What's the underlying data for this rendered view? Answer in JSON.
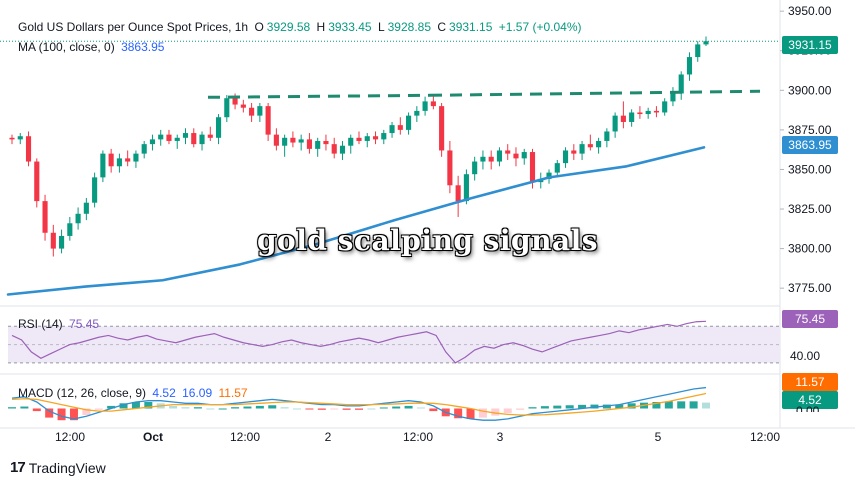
{
  "header": {
    "symbol_title": "Gold US Dollars per Ounce Spot Prices, 1h",
    "open_label": "O",
    "open_value": "3929.58",
    "high_label": "H",
    "high_value": "3933.45",
    "low_label": "L",
    "low_value": "3928.85",
    "close_label": "C",
    "close_value": "3931.15",
    "change": "+1.57 (+0.04%)",
    "ma_label": "MA (100, close, 0)",
    "ma_value": "3863.95"
  },
  "rsi_header": {
    "label": "RSI (14)",
    "value": "75.45"
  },
  "macd_header": {
    "label": "MACD (12, 26, close, 9)",
    "v1": "4.52",
    "v2": "16.09",
    "v3": "11.57"
  },
  "price_badges": {
    "last": "3931.15",
    "ma": "3863.95",
    "rsi": "75.45",
    "macd_signal": "11.57",
    "macd_line": "4.52"
  },
  "rsi_axis_label": "40.00",
  "macd_axis_partial": "0.00",
  "brand": "TradingView",
  "watermark": "gold scalping signals",
  "colors": {
    "up": "#089981",
    "down": "#f23645",
    "ma": "#2f8fd0",
    "rsi": "#9c61b8",
    "rsi_band": "#efe9f7",
    "macd": "#2f8fd0",
    "signal": "#f5a623",
    "resistance": "#1f8a70",
    "badge_price": "#089981",
    "badge_ma": "#2f8fd0",
    "badge_rsi": "#9c61b8",
    "badge_signal": "#ff6d00",
    "badge_macd": "#089981"
  },
  "chart_data": [
    {
      "type": "candlestick",
      "title": "Gold US Dollars per Ounce Spot Prices, 1h",
      "y_ticks": [
        3775,
        3800,
        3825,
        3850,
        3875,
        3900,
        3925,
        3950
      ],
      "ylim": [
        3765,
        3952
      ],
      "x_ticks": [
        "12:00",
        "Oct",
        "12:00",
        "2",
        "12:00",
        "3",
        "5",
        "12:00"
      ],
      "candles_ohlc": [
        [
          3870,
          3872,
          3866,
          3869
        ],
        [
          3869,
          3873,
          3866,
          3871
        ],
        [
          3871,
          3874,
          3852,
          3855
        ],
        [
          3855,
          3857,
          3826,
          3830
        ],
        [
          3830,
          3834,
          3805,
          3810
        ],
        [
          3810,
          3815,
          3795,
          3800
        ],
        [
          3800,
          3812,
          3797,
          3808
        ],
        [
          3808,
          3820,
          3805,
          3816
        ],
        [
          3816,
          3826,
          3812,
          3822
        ],
        [
          3822,
          3832,
          3818,
          3829
        ],
        [
          3829,
          3848,
          3826,
          3845
        ],
        [
          3845,
          3862,
          3842,
          3860
        ],
        [
          3860,
          3863,
          3848,
          3852
        ],
        [
          3852,
          3860,
          3848,
          3857
        ],
        [
          3857,
          3862,
          3852,
          3855
        ],
        [
          3855,
          3862,
          3851,
          3860
        ],
        [
          3860,
          3868,
          3857,
          3866
        ],
        [
          3866,
          3872,
          3862,
          3869
        ],
        [
          3869,
          3875,
          3865,
          3872
        ],
        [
          3872,
          3875,
          3866,
          3868
        ],
        [
          3868,
          3872,
          3863,
          3870
        ],
        [
          3870,
          3876,
          3866,
          3873
        ],
        [
          3873,
          3876,
          3864,
          3866
        ],
        [
          3866,
          3874,
          3862,
          3872
        ],
        [
          3872,
          3877,
          3868,
          3870
        ],
        [
          3870,
          3885,
          3866,
          3883
        ],
        [
          3883,
          3897,
          3880,
          3895
        ],
        [
          3895,
          3898,
          3888,
          3891
        ],
        [
          3891,
          3894,
          3886,
          3889
        ],
        [
          3889,
          3892,
          3880,
          3884
        ],
        [
          3884,
          3892,
          3880,
          3890
        ],
        [
          3890,
          3892,
          3868,
          3872
        ],
        [
          3872,
          3876,
          3862,
          3865
        ],
        [
          3865,
          3872,
          3858,
          3870
        ],
        [
          3870,
          3874,
          3864,
          3867
        ],
        [
          3867,
          3872,
          3862,
          3869
        ],
        [
          3869,
          3873,
          3860,
          3863
        ],
        [
          3863,
          3870,
          3858,
          3868
        ],
        [
          3868,
          3872,
          3862,
          3866
        ],
        [
          3866,
          3870,
          3857,
          3860
        ],
        [
          3860,
          3868,
          3856,
          3865
        ],
        [
          3865,
          3872,
          3860,
          3870
        ],
        [
          3870,
          3874,
          3866,
          3868
        ],
        [
          3868,
          3873,
          3864,
          3871
        ],
        [
          3871,
          3874,
          3866,
          3869
        ],
        [
          3869,
          3875,
          3866,
          3873
        ],
        [
          3873,
          3880,
          3870,
          3878
        ],
        [
          3878,
          3883,
          3872,
          3875
        ],
        [
          3875,
          3886,
          3872,
          3884
        ],
        [
          3884,
          3890,
          3880,
          3887
        ],
        [
          3887,
          3896,
          3884,
          3893
        ],
        [
          3893,
          3897,
          3888,
          3890
        ],
        [
          3890,
          3892,
          3858,
          3862
        ],
        [
          3862,
          3868,
          3835,
          3840
        ],
        [
          3840,
          3846,
          3820,
          3830
        ],
        [
          3830,
          3850,
          3828,
          3847
        ],
        [
          3847,
          3858,
          3843,
          3855
        ],
        [
          3855,
          3862,
          3850,
          3858
        ],
        [
          3858,
          3862,
          3850,
          3855
        ],
        [
          3855,
          3864,
          3852,
          3862
        ],
        [
          3862,
          3866,
          3856,
          3860
        ],
        [
          3860,
          3864,
          3852,
          3857
        ],
        [
          3857,
          3863,
          3853,
          3861
        ],
        [
          3861,
          3863,
          3838,
          3842
        ],
        [
          3842,
          3848,
          3838,
          3844
        ],
        [
          3844,
          3850,
          3841,
          3848
        ],
        [
          3848,
          3856,
          3845,
          3854
        ],
        [
          3854,
          3864,
          3851,
          3862
        ],
        [
          3862,
          3866,
          3856,
          3860
        ],
        [
          3860,
          3868,
          3856,
          3866
        ],
        [
          3866,
          3872,
          3862,
          3864
        ],
        [
          3864,
          3870,
          3860,
          3868
        ],
        [
          3868,
          3876,
          3864,
          3874
        ],
        [
          3874,
          3886,
          3870,
          3884
        ],
        [
          3884,
          3893,
          3876,
          3880
        ],
        [
          3880,
          3888,
          3877,
          3886
        ],
        [
          3886,
          3890,
          3882,
          3885
        ],
        [
          3885,
          3889,
          3882,
          3887
        ],
        [
          3887,
          3890,
          3883,
          3886
        ],
        [
          3886,
          3895,
          3884,
          3893
        ],
        [
          3893,
          3902,
          3890,
          3898
        ],
        [
          3898,
          3912,
          3894,
          3910
        ],
        [
          3910,
          3924,
          3906,
          3921
        ],
        [
          3921,
          3931,
          3918,
          3929
        ],
        [
          3929,
          3934,
          3928,
          3931
        ]
      ],
      "ma_100_samples": [
        3771,
        3776,
        3780,
        3790,
        3803,
        3818,
        3832,
        3845,
        3852,
        3863.95
      ],
      "resistance_level": 3900
    },
    {
      "type": "line",
      "name": "RSI (14)",
      "y_ticks": [
        40
      ],
      "ylim": [
        20,
        90
      ],
      "band": [
        30,
        70
      ],
      "values": [
        60,
        55,
        42,
        35,
        40,
        45,
        50,
        52,
        55,
        58,
        60,
        57,
        55,
        58,
        60,
        56,
        54,
        52,
        55,
        58,
        60,
        62,
        58,
        55,
        52,
        50,
        48,
        50,
        53,
        55,
        52,
        50,
        48,
        50,
        53,
        55,
        57,
        55,
        52,
        55,
        58,
        60,
        62,
        64,
        60,
        42,
        30,
        36,
        44,
        48,
        46,
        50,
        52,
        49,
        45,
        42,
        46,
        50,
        54,
        56,
        58,
        60,
        62,
        65,
        63,
        66,
        68,
        70,
        72,
        70,
        73,
        75,
        75.45
      ]
    },
    {
      "type": "line",
      "name": "MACD (12, 26, close, 9)",
      "ylim": [
        -15,
        25
      ],
      "macd": [
        8,
        9,
        5,
        -2,
        -6,
        -8,
        -6,
        -3,
        0,
        3,
        5,
        6,
        6,
        5,
        4,
        4,
        3,
        3,
        4,
        5,
        6,
        7,
        6,
        5,
        4,
        3,
        3,
        2,
        2,
        3,
        4,
        5,
        6,
        5,
        2,
        -3,
        -6,
        -8,
        -9,
        -9,
        -8,
        -6,
        -4,
        -3,
        -2,
        -1,
        0,
        1,
        2,
        3,
        5,
        7,
        9,
        11,
        13,
        15,
        16.09
      ],
      "signal": [
        7,
        7.5,
        7,
        5,
        3,
        1,
        -1,
        -2,
        -2,
        -1,
        0,
        1,
        2,
        3,
        3,
        3,
        3,
        3,
        3,
        3.5,
        4,
        4.5,
        5,
        5,
        4.5,
        4,
        3.5,
        3,
        3,
        3,
        3.2,
        3.5,
        4,
        4.2,
        4,
        3,
        1.5,
        0,
        -2,
        -3.5,
        -4.5,
        -5,
        -5,
        -4.8,
        -4.2,
        -3.5,
        -2.8,
        -2,
        -1,
        0,
        1,
        2.5,
        4,
        5.5,
        7.5,
        9.5,
        11.57
      ],
      "histogram_last": 4.52
    }
  ]
}
